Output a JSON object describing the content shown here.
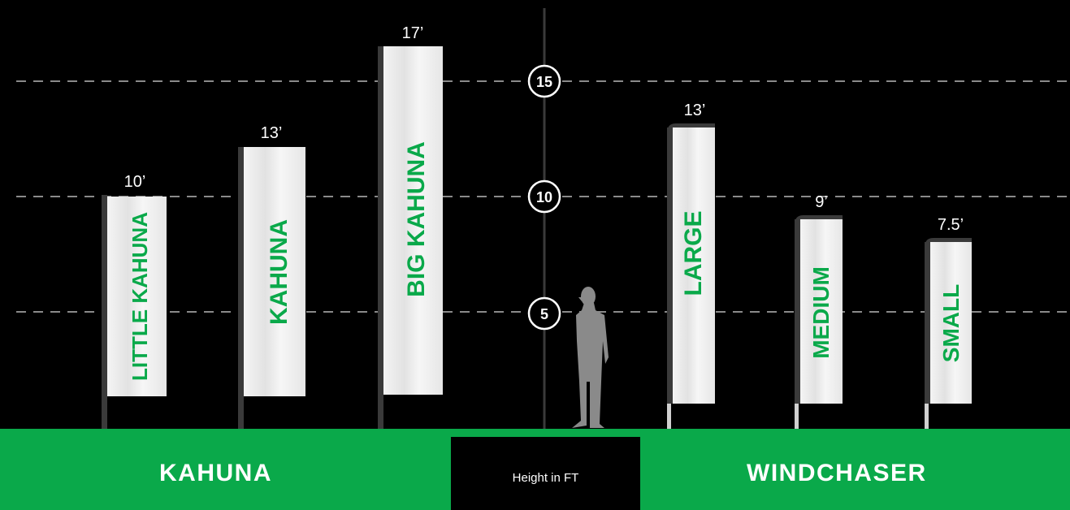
{
  "legend": {
    "unit_label": "Height in FT",
    "left_group": "KAHUNA",
    "right_group": "WINDCHASER"
  },
  "scale": {
    "ticks": [
      "5",
      "10",
      "15"
    ]
  },
  "colors": {
    "background": "#000000",
    "accent": "#0aa94a",
    "flag": "#ededed",
    "pole_dark": "#3a3a3a",
    "pole_light": "#d0d0d0",
    "person": "#8a8a8a"
  },
  "flags": [
    {
      "name": "LITTLE KAHUNA",
      "height": "10’",
      "value": 10,
      "group": "kahuna"
    },
    {
      "name": "KAHUNA",
      "height": "13’",
      "value": 13,
      "group": "kahuna"
    },
    {
      "name": "BIG KAHUNA",
      "height": "17’",
      "value": 17,
      "group": "kahuna"
    },
    {
      "name": "LARGE",
      "height": "13’",
      "value": 13,
      "group": "windchaser"
    },
    {
      "name": "MEDIUM",
      "height": "9’",
      "value": 9,
      "group": "windchaser"
    },
    {
      "name": "SMALL",
      "height": "7.5’",
      "value": 7.5,
      "group": "windchaser"
    }
  ]
}
